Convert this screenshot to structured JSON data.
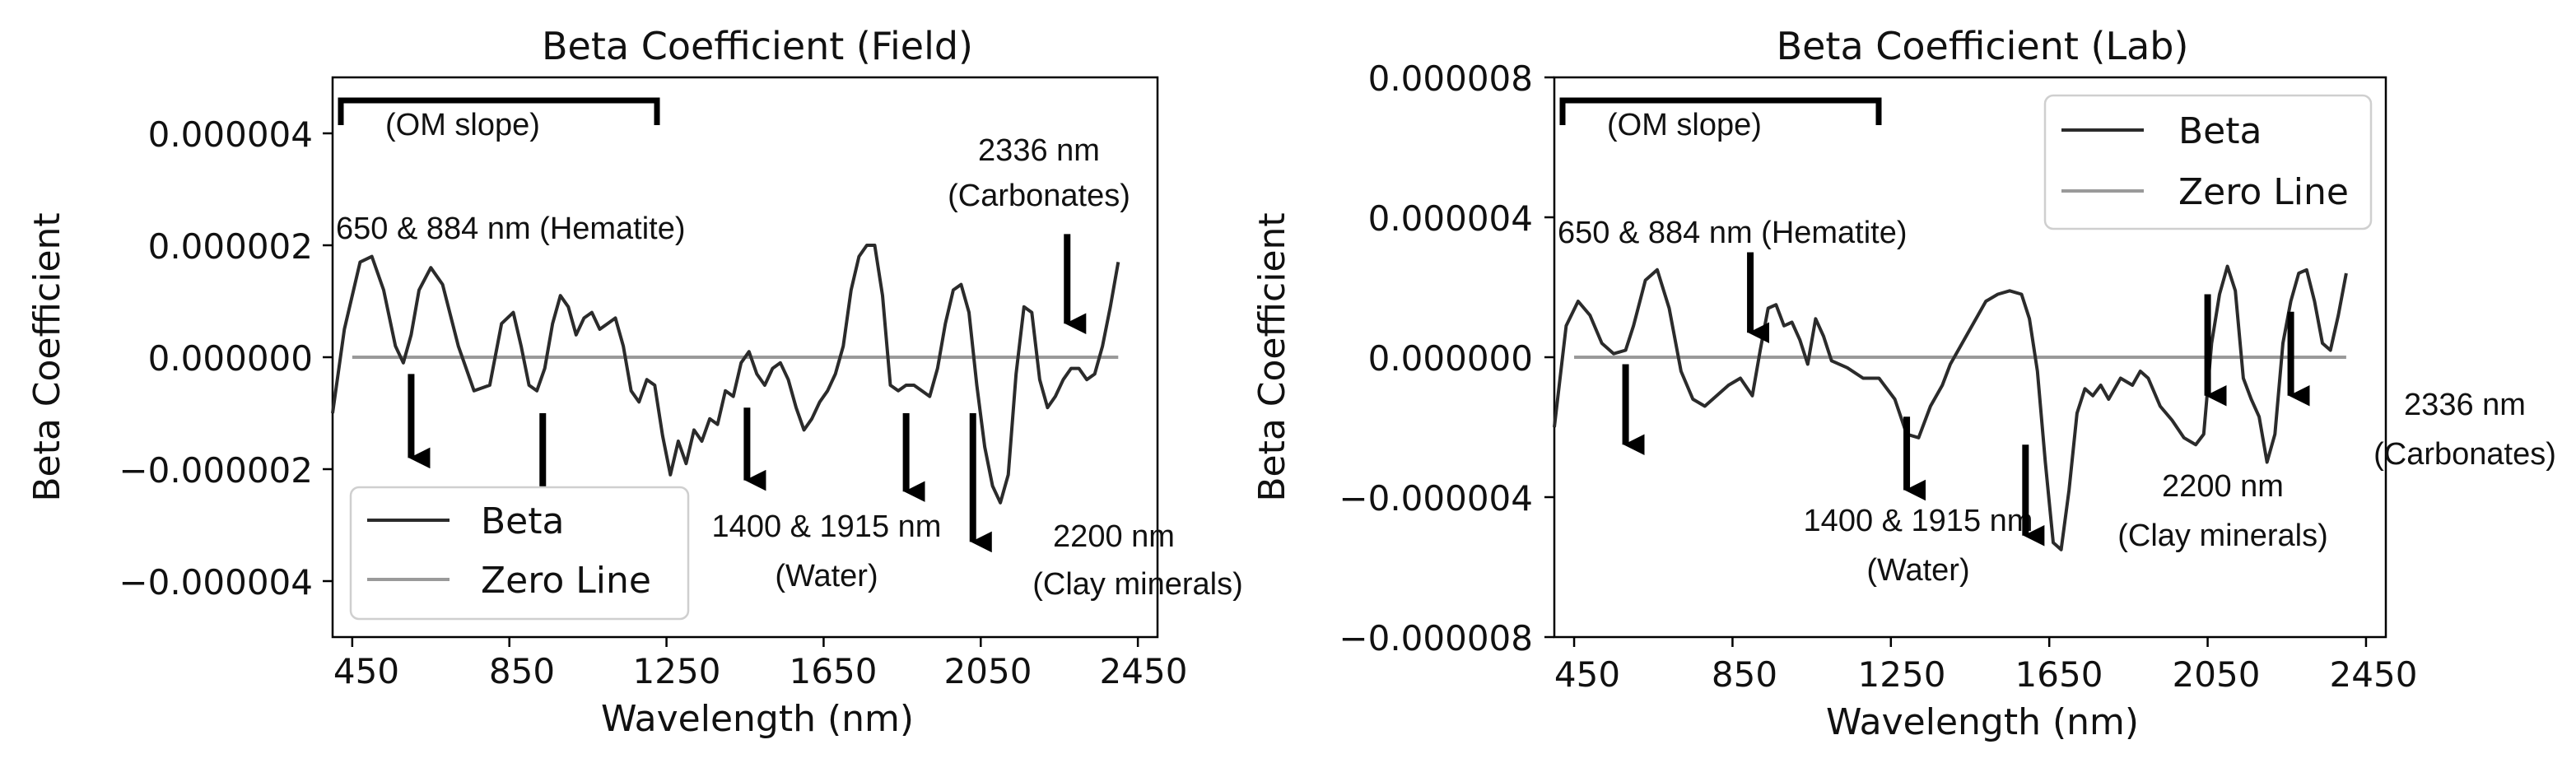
{
  "colors": {
    "beta_line": "#2b2b2b",
    "zero_line": "#9a9a9a",
    "annotation": "#000000",
    "axis": "#000000"
  },
  "chart_data": [
    {
      "id": "field",
      "type": "line",
      "title": "Beta Coefficient (Field)",
      "xlabel": "Wavelength (nm)",
      "ylabel": "Beta Coefficient",
      "xlim": [
        400,
        2500
      ],
      "ylim": [
        -5e-06,
        5e-06
      ],
      "xticks": [
        450,
        850,
        1250,
        1650,
        2050,
        2450
      ],
      "xtick_labels": [
        "450",
        "850",
        "1250",
        "1650",
        "2050",
        "2450"
      ],
      "yticks": [
        4e-06,
        2e-06,
        0,
        -2e-06,
        -4e-06
      ],
      "ytick_labels": [
        "0.000004",
        "0.000002",
        "0.000000",
        "−0.000002",
        "−0.000004"
      ],
      "legend": {
        "position": "lower-left",
        "entries": [
          "Beta",
          "Zero Line"
        ]
      },
      "series": [
        {
          "name": "Beta",
          "x": [
            400,
            430,
            470,
            500,
            530,
            560,
            580,
            600,
            620,
            650,
            680,
            720,
            760,
            800,
            830,
            860,
            880,
            900,
            920,
            940,
            960,
            980,
            1000,
            1020,
            1040,
            1060,
            1080,
            1100,
            1120,
            1140,
            1160,
            1180,
            1200,
            1220,
            1240,
            1260,
            1280,
            1300,
            1320,
            1340,
            1360,
            1380,
            1400,
            1420,
            1440,
            1460,
            1480,
            1500,
            1520,
            1540,
            1560,
            1580,
            1600,
            1620,
            1640,
            1660,
            1680,
            1700,
            1720,
            1740,
            1760,
            1780,
            1800,
            1820,
            1840,
            1860,
            1880,
            1900,
            1920,
            1940,
            1960,
            1980,
            2000,
            2020,
            2040,
            2060,
            2080,
            2100,
            2120,
            2140,
            2160,
            2180,
            2200,
            2220,
            2240,
            2260,
            2280,
            2300,
            2320,
            2340,
            2360,
            2380,
            2400
          ],
          "values": [
            -1e-06,
            5e-07,
            1.7e-06,
            1.8e-06,
            1.2e-06,
            2e-07,
            -1e-07,
            4e-07,
            1.2e-06,
            1.6e-06,
            1.3e-06,
            2e-07,
            -6e-07,
            -5e-07,
            6e-07,
            8e-07,
            2e-07,
            -5e-07,
            -6e-07,
            -2e-07,
            6e-07,
            1.1e-06,
            9e-07,
            4e-07,
            7e-07,
            8e-07,
            5e-07,
            6e-07,
            7e-07,
            2e-07,
            -6e-07,
            -8e-07,
            -4e-07,
            -5e-07,
            -1.4e-06,
            -2.1e-06,
            -1.5e-06,
            -1.9e-06,
            -1.3e-06,
            -1.5e-06,
            -1.1e-06,
            -1.2e-06,
            -6e-07,
            -7e-07,
            -1e-07,
            1e-07,
            -3e-07,
            -5e-07,
            -2e-07,
            -1e-07,
            -4e-07,
            -9e-07,
            -1.3e-06,
            -1.1e-06,
            -8e-07,
            -6e-07,
            -3e-07,
            2e-07,
            1.2e-06,
            1.8e-06,
            2e-06,
            2e-06,
            1.1e-06,
            -5e-07,
            -6e-07,
            -5e-07,
            -5e-07,
            -6e-07,
            -7e-07,
            -2e-07,
            6e-07,
            1.2e-06,
            1.3e-06,
            8e-07,
            -5e-07,
            -1.6e-06,
            -2.3e-06,
            -2.6e-06,
            -2.1e-06,
            -3e-07,
            9e-07,
            8e-07,
            -4e-07,
            -9e-07,
            -7e-07,
            -4e-07,
            -2e-07,
            -2e-07,
            -4e-07,
            -3e-07,
            2e-07,
            9e-07,
            1.7e-06
          ]
        },
        {
          "name": "Zero Line",
          "x": [
            450,
            2400
          ],
          "values": [
            0,
            0
          ]
        }
      ],
      "annotations": [
        {
          "label": "(OM slope)",
          "kind": "bracket",
          "x_range": [
            420,
            1160
          ]
        },
        {
          "label": "650 & 884 nm (Hematite)",
          "kind": "text"
        },
        {
          "label": "2336 nm",
          "kind": "text"
        },
        {
          "label": "(Carbonates)",
          "kind": "text"
        },
        {
          "label": "1400 & 1915 nm",
          "kind": "text"
        },
        {
          "label": "(Water)",
          "kind": "text"
        },
        {
          "label": "2200 nm",
          "kind": "text"
        },
        {
          "label": "(Clay minerals)",
          "kind": "text"
        }
      ],
      "arrows": [
        {
          "x": 600,
          "y_from": -3e-07,
          "y_to": -1.8e-06
        },
        {
          "x": 935,
          "y_from": -1e-06,
          "y_to": -2.5e-06
        },
        {
          "x": 1455,
          "y_from": -9e-07,
          "y_to": -2.2e-06
        },
        {
          "x": 1860,
          "y_from": -1e-06,
          "y_to": -2.4e-06
        },
        {
          "x": 2030,
          "y_from": -1e-06,
          "y_to": -3.3e-06
        },
        {
          "x": 2270,
          "y_from": 2.2e-06,
          "y_to": 6e-07
        }
      ]
    },
    {
      "id": "lab",
      "type": "line",
      "title": "Beta Coefficient (Lab)",
      "xlabel": "Wavelength (nm)",
      "ylabel": "Beta Coefficient",
      "xlim": [
        400,
        2500
      ],
      "ylim": [
        -8e-06,
        8e-06
      ],
      "xticks": [
        450,
        850,
        1250,
        1650,
        2050,
        2450
      ],
      "xtick_labels": [
        "450",
        "850",
        "1250",
        "1650",
        "2050",
        "2450"
      ],
      "yticks": [
        8e-06,
        4e-06,
        0,
        -4e-06,
        -8e-06
      ],
      "ytick_labels": [
        "0.000008",
        "0.000004",
        "0.000000",
        "−0.000004",
        "−0.000008"
      ],
      "legend": {
        "position": "top-right",
        "entries": [
          "Beta",
          "Zero Line"
        ]
      },
      "series": [
        {
          "name": "Beta",
          "x": [
            400,
            430,
            460,
            490,
            520,
            550,
            580,
            600,
            630,
            660,
            690,
            720,
            750,
            780,
            810,
            840,
            870,
            900,
            920,
            940,
            960,
            980,
            1000,
            1020,
            1040,
            1060,
            1080,
            1100,
            1140,
            1180,
            1220,
            1260,
            1290,
            1320,
            1350,
            1380,
            1400,
            1430,
            1460,
            1490,
            1520,
            1550,
            1580,
            1600,
            1620,
            1640,
            1660,
            1680,
            1700,
            1720,
            1740,
            1760,
            1780,
            1800,
            1830,
            1860,
            1880,
            1900,
            1930,
            1960,
            1990,
            2020,
            2040,
            2060,
            2080,
            2100,
            2120,
            2140,
            2160,
            2180,
            2200,
            2220,
            2240,
            2260,
            2280,
            2300,
            2320,
            2340,
            2360,
            2380,
            2400
          ],
          "values": [
            -2e-06,
            9e-07,
            1.6e-06,
            1.2e-06,
            4e-07,
            1e-07,
            2e-07,
            9e-07,
            2.2e-06,
            2.5e-06,
            1.4e-06,
            -4e-07,
            -1.2e-06,
            -1.4e-06,
            -1.1e-06,
            -8e-07,
            -6e-07,
            -1.1e-06,
            2e-07,
            1.4e-06,
            1.5e-06,
            9e-07,
            1e-06,
            5e-07,
            -2e-07,
            1.1e-06,
            6e-07,
            -1e-07,
            -3e-07,
            -6e-07,
            -6e-07,
            -1.2e-06,
            -2.2e-06,
            -2.3e-06,
            -1.4e-06,
            -8e-07,
            -2e-07,
            4e-07,
            1e-06,
            1.6e-06,
            1.8e-06,
            1.9e-06,
            1.8e-06,
            1.1e-06,
            -4e-07,
            -3e-06,
            -5.3e-06,
            -5.5e-06,
            -3.8e-06,
            -1.6e-06,
            -9e-07,
            -1.1e-06,
            -8e-07,
            -1.2e-06,
            -6e-07,
            -8e-07,
            -4e-07,
            -6e-07,
            -1.4e-06,
            -1.8e-06,
            -2.3e-06,
            -2.5e-06,
            -2.2e-06,
            4e-07,
            1.8e-06,
            2.6e-06,
            1.9e-06,
            -6e-07,
            -1.2e-06,
            -1.7e-06,
            -3e-06,
            -2.2e-06,
            4e-07,
            1.6e-06,
            2.4e-06,
            2.5e-06,
            1.6e-06,
            4e-07,
            2e-07,
            1.2e-06,
            2.4e-06
          ]
        },
        {
          "name": "Zero Line",
          "x": [
            450,
            2400
          ],
          "values": [
            0,
            0
          ]
        }
      ],
      "annotations": [
        {
          "label": "(OM slope)",
          "kind": "bracket",
          "x_range": [
            420,
            1160
          ]
        },
        {
          "label": "650 & 884 nm (Hematite)",
          "kind": "text"
        },
        {
          "label": "2336 nm",
          "kind": "text"
        },
        {
          "label": "(Carbonates)",
          "kind": "text"
        },
        {
          "label": "1400 & 1915 nm",
          "kind": "text"
        },
        {
          "label": "(Water)",
          "kind": "text"
        },
        {
          "label": "2200 nm",
          "kind": "text"
        },
        {
          "label": "(Clay minerals)",
          "kind": "text"
        }
      ],
      "arrows": [
        {
          "x": 580,
          "y_from": -2e-07,
          "y_to": -2.5e-06
        },
        {
          "x": 895,
          "y_from": 3e-06,
          "y_to": 7e-07
        },
        {
          "x": 1290,
          "y_from": -1.7e-06,
          "y_to": -3.8e-06
        },
        {
          "x": 1590,
          "y_from": -2.5e-06,
          "y_to": -5.1e-06
        },
        {
          "x": 2050,
          "y_from": 1.8e-06,
          "y_to": -1.1e-06
        },
        {
          "x": 2260,
          "y_from": 1.3e-06,
          "y_to": -1.1e-06
        }
      ]
    }
  ]
}
